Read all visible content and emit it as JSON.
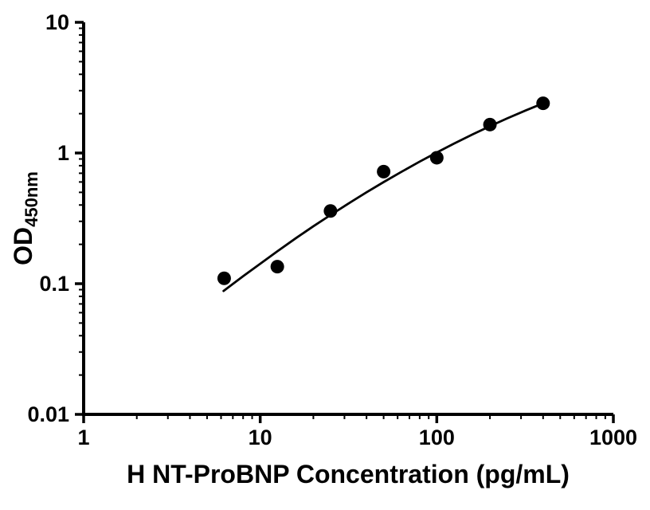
{
  "figure": {
    "background": "#ffffff"
  },
  "chart_data": {
    "type": "scatter",
    "title": "",
    "xlabel": "H NT-ProBNP Concentration (pg/mL)",
    "ylabel_main": "OD",
    "ylabel_sub": "450nm",
    "x_scale": "log",
    "y_scale": "log",
    "xlim": [
      1,
      1000
    ],
    "ylim": [
      0.01,
      10
    ],
    "grid": false,
    "legend": false,
    "axis_color": "#000000",
    "x_ticks": {
      "values": [
        1,
        10,
        100,
        1000
      ],
      "labels": [
        "1",
        "10",
        "100",
        "1000"
      ]
    },
    "y_ticks": {
      "values": [
        0.01,
        0.1,
        1,
        10
      ],
      "labels": [
        "0.01",
        "0.1",
        "1",
        "10"
      ]
    },
    "series": [
      {
        "name": "standard-points",
        "type": "scatter",
        "marker": "filled-circle",
        "color": "#000000",
        "x": [
          6.25,
          12.5,
          25,
          50,
          100,
          200,
          400
        ],
        "y": [
          0.11,
          0.135,
          0.36,
          0.72,
          0.92,
          1.65,
          2.4
        ]
      },
      {
        "name": "fit-curve",
        "type": "line",
        "color": "#000000",
        "x": [
          6.2,
          8,
          10,
          12.5,
          16,
          20,
          25,
          32,
          40,
          50,
          63,
          80,
          100,
          125,
          160,
          200,
          250,
          320,
          400
        ],
        "y": [
          0.088,
          0.114,
          0.142,
          0.177,
          0.224,
          0.275,
          0.335,
          0.415,
          0.5,
          0.599,
          0.717,
          0.859,
          1.009,
          1.179,
          1.39,
          1.603,
          1.838,
          2.122,
          2.4
        ]
      }
    ]
  }
}
